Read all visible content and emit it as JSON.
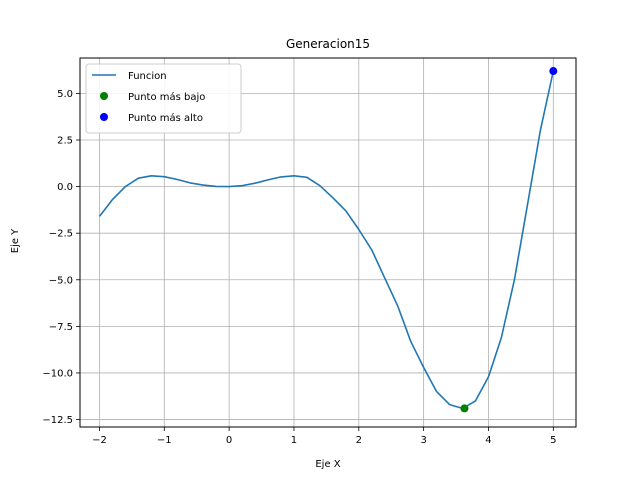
{
  "chart_data": {
    "type": "line",
    "title": "Generacion15",
    "xlabel": "Eje X",
    "ylabel": "Eje Y",
    "xlim": [
      -2.3,
      5.35
    ],
    "ylim": [
      -12.9,
      6.9
    ],
    "grid": true,
    "legend_position": "top-left",
    "x_ticks": [
      -2,
      -1,
      0,
      1,
      2,
      3,
      4,
      5
    ],
    "x_tick_labels": [
      "−2",
      "−1",
      "0",
      "1",
      "2",
      "3",
      "4",
      "5"
    ],
    "y_ticks": [
      -12.5,
      -10.0,
      -7.5,
      -5.0,
      -2.5,
      0.0,
      2.5,
      5.0
    ],
    "y_tick_labels": [
      "−12.5",
      "−10.0",
      "−7.5",
      "−5.0",
      "−2.5",
      "0.0",
      "2.5",
      "5.0"
    ],
    "series": [
      {
        "name": "Funcion",
        "kind": "line",
        "color": "#1f77b4",
        "x": [
          -2.0,
          -1.8,
          -1.6,
          -1.4,
          -1.2,
          -1.0,
          -0.8,
          -0.6,
          -0.4,
          -0.2,
          0.0,
          0.2,
          0.4,
          0.6,
          0.8,
          1.0,
          1.2,
          1.4,
          1.6,
          1.8,
          2.0,
          2.2,
          2.4,
          2.6,
          2.8,
          3.0,
          3.2,
          3.4,
          3.6,
          3.8,
          4.0,
          4.2,
          4.4,
          4.6,
          4.8,
          5.0
        ],
        "y": [
          -1.6,
          -0.7,
          0.0,
          0.45,
          0.58,
          0.53,
          0.38,
          0.2,
          0.08,
          0.01,
          0.0,
          0.05,
          0.18,
          0.36,
          0.52,
          0.58,
          0.5,
          0.05,
          -0.6,
          -1.3,
          -2.3,
          -3.4,
          -4.9,
          -6.4,
          -8.3,
          -9.7,
          -11.0,
          -11.7,
          -11.9,
          -11.5,
          -10.2,
          -8.1,
          -5.0,
          -1.0,
          3.0,
          6.2
        ]
      },
      {
        "name": "Punto más bajo",
        "kind": "scatter",
        "color": "#008000",
        "x": [
          3.63
        ],
        "y": [
          -11.9
        ]
      },
      {
        "name": "Punto más alto",
        "kind": "scatter",
        "color": "#0000ff",
        "x": [
          5.0
        ],
        "y": [
          6.2
        ]
      }
    ]
  }
}
